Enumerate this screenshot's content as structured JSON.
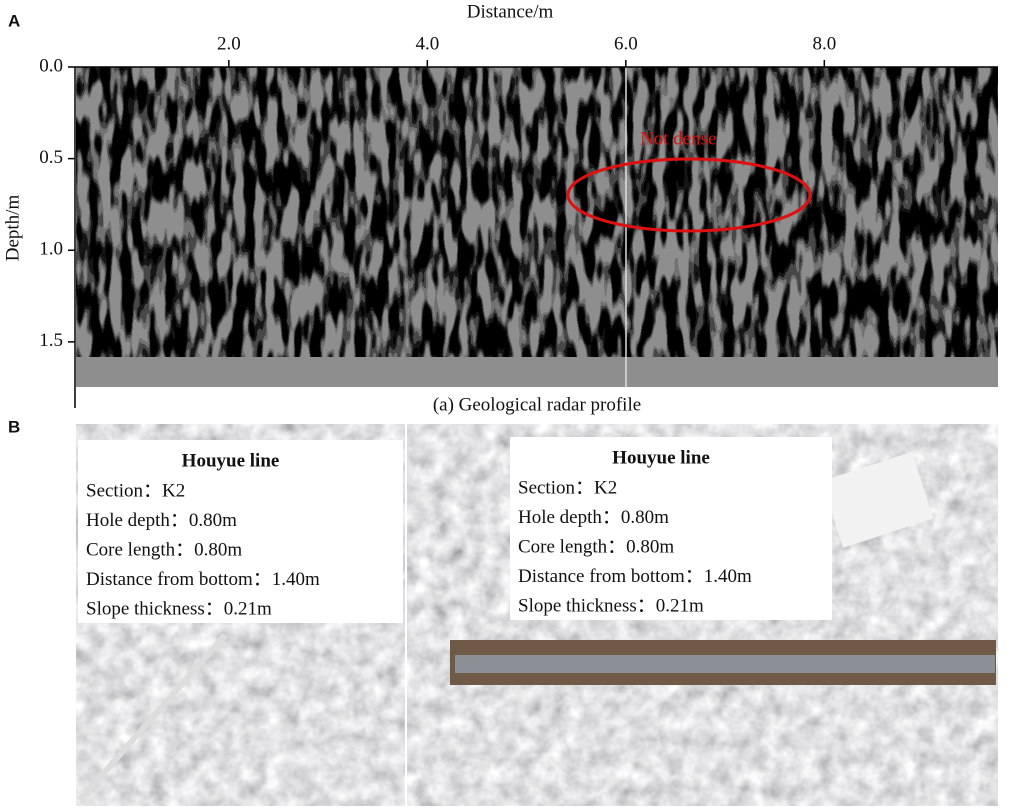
{
  "panel_a": {
    "label": "A",
    "x_label": "Distance/m",
    "y_label": "Depth/m",
    "xlim": [
      0.45,
      9.75
    ],
    "ylim": [
      0,
      1.85
    ],
    "xticks": [
      {
        "value": 2,
        "label": "2.0"
      },
      {
        "value": 4,
        "label": "4.0"
      },
      {
        "value": 6,
        "label": "6.0"
      },
      {
        "value": 8,
        "label": "8.0"
      }
    ],
    "yticks": [
      {
        "value": 0,
        "label": "0.0"
      },
      {
        "value": 0.5,
        "label": "0.5"
      },
      {
        "value": 1,
        "label": "1.0"
      },
      {
        "value": 1.5,
        "label": "1.5"
      }
    ],
    "annotation": "Not dense",
    "caption": "(a) Geological radar profile"
  },
  "panel_b": {
    "label": "B",
    "boxes": [
      {
        "title": "Houyue line",
        "lines": [
          "Section：K2",
          "Hole depth：0.80m",
          "Core length：0.80m",
          "Distance from bottom：1.40m",
          "Slope thickness：0.21m"
        ]
      },
      {
        "title": "Houyue line",
        "lines": [
          "Section：K2",
          "Hole depth：0.80m",
          "Core length：0.80m",
          "Distance from bottom：1.40m",
          "Slope thickness：0.21m"
        ]
      }
    ]
  }
}
